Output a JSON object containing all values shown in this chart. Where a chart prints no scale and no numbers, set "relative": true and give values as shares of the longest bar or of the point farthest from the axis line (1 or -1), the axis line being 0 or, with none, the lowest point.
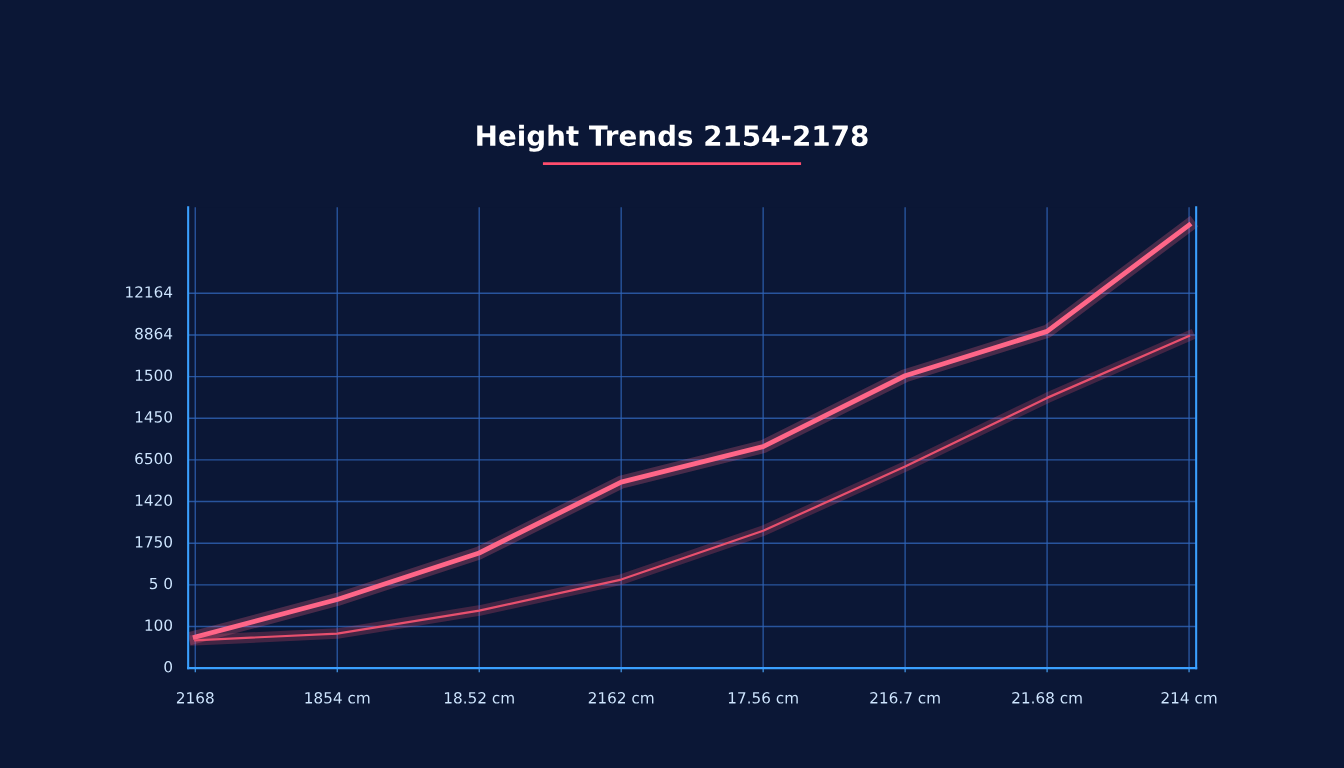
{
  "chart_data": {
    "type": "line",
    "title": "Height Trends 2154-2178",
    "relative": true,
    "categories": [
      "2168",
      "1854 cm",
      "18.52 cm",
      "2162 cm",
      "17.56 cm",
      "216.7 cm",
      "21.68 cm",
      "214 cm"
    ],
    "series": [
      {
        "color": "#ff6688",
        "values": [
          0.07,
          0.155,
          0.26,
          0.42,
          0.5,
          0.66,
          0.76,
          1.0
        ]
      },
      {
        "color": "#e8506e",
        "values": [
          0.063,
          0.078,
          0.13,
          0.2,
          0.31,
          0.455,
          0.61,
          0.75
        ]
      }
    ],
    "annotations": [
      "0",
      "100",
      "5 0",
      "1750",
      "1420",
      "6500",
      "1450",
      "1500",
      "8864",
      "12164"
    ],
    "grid": "x",
    "marker": "none",
    "line_style": "solid"
  }
}
